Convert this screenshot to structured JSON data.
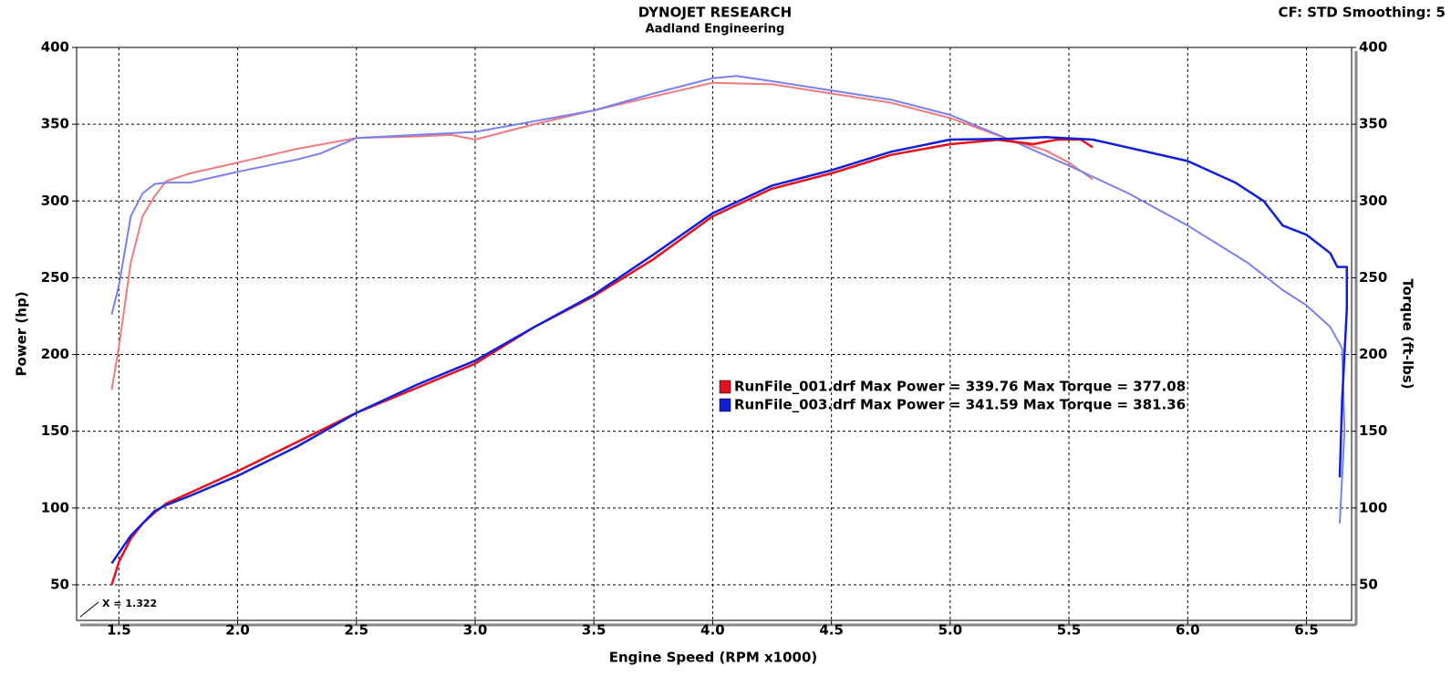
{
  "chart_data": {
    "type": "line",
    "title": "DYNOJET RESEARCH",
    "subtitle": "Aadland Engineering",
    "settings_text": "CF: STD  Smoothing: 5",
    "x_label": "Engine Speed (RPM x1000)",
    "y_label": "Power (hp)",
    "y2_label": "Torque (ft-lbs)",
    "annotation": "X = 1.322",
    "grid": true,
    "xlim": [
      1.322,
      6.69
    ],
    "xticks": [
      1.5,
      {
        "value": 2,
        "label": "2.0"
      },
      2.5,
      {
        "value": 3,
        "label": "3.0"
      },
      3.5,
      {
        "value": 4,
        "label": "4.0"
      },
      4.5,
      {
        "value": 5,
        "label": "5.0"
      },
      5.5,
      {
        "value": 6,
        "label": "6.0"
      },
      6.5
    ],
    "ylim": [
      26.8,
      400
    ],
    "yticks": [
      50,
      100,
      150,
      200,
      250,
      300,
      350,
      400
    ],
    "y2lim": [
      26.8,
      400
    ],
    "y2ticks": [
      50,
      100,
      150,
      200,
      250,
      300,
      350,
      400
    ],
    "series": [
      {
        "name": "RunFile_001.drf Max Power = 339.76 Max Torque = 377.08",
        "color": "#e8101a",
        "torque_color": "#f07a80",
        "x": [
          1.47,
          1.5,
          1.55,
          1.6,
          1.65,
          1.7,
          1.8,
          2.0,
          2.25,
          2.5,
          2.75,
          3.0,
          3.25,
          3.5,
          3.75,
          4.0,
          4.25,
          4.5,
          4.75,
          5.0,
          5.2,
          5.35,
          5.45,
          5.55,
          5.6
        ],
        "values": [
          50,
          65,
          80,
          90,
          97,
          103,
          110,
          124,
          143,
          162,
          178,
          194,
          218,
          238,
          262,
          290,
          308,
          318,
          330,
          337,
          339.8,
          337,
          340,
          340,
          335
        ],
        "torque_x": [
          1.47,
          1.5,
          1.55,
          1.6,
          1.65,
          1.7,
          1.8,
          2.0,
          2.25,
          2.5,
          2.75,
          2.9,
          3.0,
          3.25,
          3.5,
          3.75,
          4.0,
          4.25,
          4.5,
          4.75,
          5.0,
          5.25,
          5.4,
          5.5,
          5.6
        ],
        "torque_values": [
          177,
          205,
          260,
          290,
          303,
          313,
          318,
          325,
          334,
          341,
          342,
          343,
          340,
          350,
          359,
          368,
          377,
          376,
          370,
          364,
          354,
          340,
          333,
          325,
          314
        ]
      },
      {
        "name": "RunFile_003.drf Max Power = 341.59 Max Torque = 381.36",
        "color": "#1020d8",
        "torque_color": "#7a80f0",
        "x": [
          1.47,
          1.55,
          1.6,
          1.65,
          1.7,
          1.8,
          2.0,
          2.25,
          2.5,
          2.75,
          3.0,
          3.25,
          3.5,
          3.75,
          4.0,
          4.25,
          4.5,
          4.75,
          5.0,
          5.25,
          5.4,
          5.6,
          5.8,
          6.0,
          6.2,
          6.32,
          6.4,
          6.5,
          6.6,
          6.63,
          6.67,
          6.67,
          6.65,
          6.64
        ],
        "values": [
          64,
          82,
          90,
          98,
          102,
          108,
          121,
          140,
          162,
          180,
          196,
          218,
          239,
          265,
          292,
          310,
          320,
          332,
          340,
          340.5,
          341.6,
          340,
          333,
          326,
          312,
          300,
          284,
          278,
          266,
          257,
          257,
          230,
          170,
          120
        ],
        "torque_x": [
          1.47,
          1.5,
          1.55,
          1.6,
          1.65,
          1.7,
          1.8,
          2.0,
          2.25,
          2.35,
          2.5,
          2.75,
          3.0,
          3.25,
          3.5,
          3.75,
          4.0,
          4.1,
          4.25,
          4.5,
          4.75,
          5.0,
          5.25,
          5.5,
          5.75,
          6.0,
          6.25,
          6.4,
          6.5,
          6.6,
          6.65,
          6.66,
          6.64
        ],
        "torque_values": [
          226,
          245,
          290,
          305,
          311,
          312,
          312,
          319,
          327,
          331,
          341,
          343,
          345,
          352,
          359,
          370,
          380,
          381.4,
          378,
          372,
          366,
          356,
          340,
          323,
          305,
          284,
          260,
          242,
          232,
          218,
          204,
          150,
          90
        ]
      }
    ]
  }
}
